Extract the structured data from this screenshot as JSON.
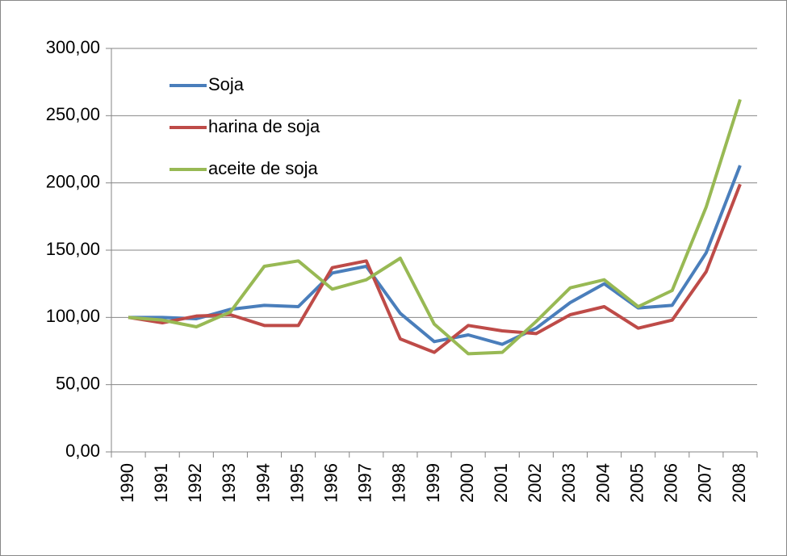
{
  "chart_data": {
    "type": "line",
    "categories": [
      "1990",
      "1991",
      "1992",
      "1993",
      "1994",
      "1995",
      "1996",
      "1997",
      "1998",
      "1999",
      "2000",
      "2001",
      "2002",
      "2003",
      "2004",
      "2005",
      "2006",
      "2007",
      "2008"
    ],
    "series": [
      {
        "name": "Soja",
        "color": "#4a7ebb",
        "values": [
          100,
          100,
          99,
          106,
          109,
          108,
          133,
          138,
          103,
          82,
          87,
          80,
          92,
          111,
          125,
          107,
          109,
          148,
          213
        ]
      },
      {
        "name": "harina de soja",
        "color": "#be4b48",
        "values": [
          100,
          96,
          101,
          102,
          94,
          94,
          137,
          142,
          84,
          74,
          94,
          90,
          88,
          102,
          108,
          92,
          98,
          134,
          199
        ]
      },
      {
        "name": "aceite de soja",
        "color": "#98b954",
        "values": [
          100,
          98,
          93,
          104,
          138,
          142,
          121,
          128,
          144,
          95,
          73,
          74,
          97,
          122,
          128,
          108,
          120,
          182,
          262
        ]
      }
    ],
    "ylim": [
      0,
      300
    ],
    "yticks": [
      {
        "value": 0,
        "label": "0,00"
      },
      {
        "value": 50,
        "label": "50,00"
      },
      {
        "value": 100,
        "label": "100,00"
      },
      {
        "value": 150,
        "label": "150,00"
      },
      {
        "value": 200,
        "label": "200,00"
      },
      {
        "value": 250,
        "label": "250,00"
      },
      {
        "value": 300,
        "label": "300,00"
      }
    ],
    "grid": true,
    "legend": "top-left"
  }
}
